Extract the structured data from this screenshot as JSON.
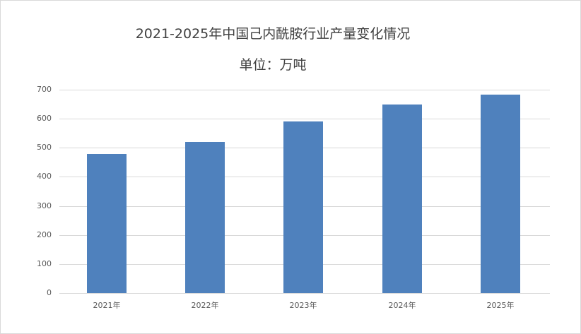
{
  "chart_data": {
    "type": "bar",
    "title": "2021-2025年中国己内酰胺行业产量变化情况",
    "subtitle": "单位：万吨",
    "categories": [
      "2021年",
      "2022年",
      "2023年",
      "2024年",
      "2025年"
    ],
    "values": [
      480,
      520,
      590,
      650,
      683
    ],
    "xlabel": "",
    "ylabel": "",
    "ylim": [
      0,
      700
    ],
    "yticks": [
      "0",
      "100",
      "200",
      "300",
      "400",
      "500",
      "600",
      "700"
    ],
    "grid": true,
    "legend": null,
    "bar_color": "#4f81bd"
  }
}
